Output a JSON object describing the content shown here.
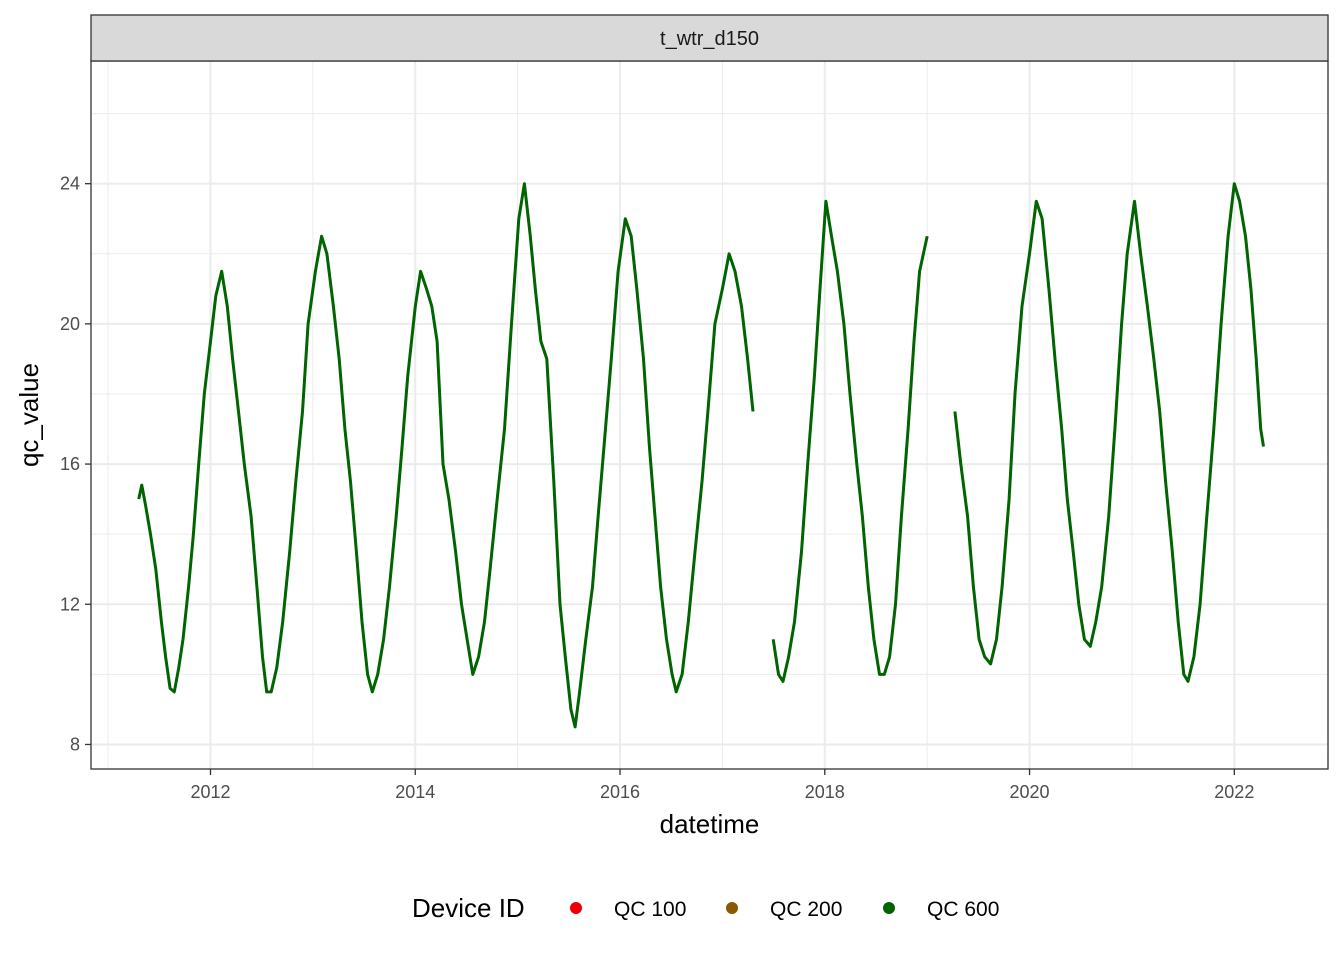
{
  "chart_data": {
    "type": "line",
    "facet_label": "t_wtr_d150",
    "xlabel": "datetime",
    "ylabel": "qc_value",
    "x_ticks": [
      "2012",
      "2014",
      "2016",
      "2018",
      "2020",
      "2022"
    ],
    "y_ticks": [
      8,
      12,
      16,
      20,
      24
    ],
    "xlim": [
      "2010-11-01",
      "2022-12-01"
    ],
    "ylim": [
      7.3,
      27.5
    ],
    "grid": true,
    "legend": {
      "title": "Device ID",
      "position": "bottom",
      "entries": [
        {
          "label": "QC 100",
          "color": "#ee0000"
        },
        {
          "label": "QC 200",
          "color": "#8b5a00"
        },
        {
          "label": "QC 600",
          "color": "#006400"
        }
      ]
    },
    "series": [
      {
        "name": "QC 600",
        "color": "#006400",
        "points": [
          [
            "2011-04-20",
            15.0
          ],
          [
            "2011-05-01",
            15.4
          ],
          [
            "2011-05-15",
            14.8
          ],
          [
            "2011-06-01",
            14.0
          ],
          [
            "2011-06-20",
            13.0
          ],
          [
            "2011-07-10",
            11.5
          ],
          [
            "2011-07-25",
            10.5
          ],
          [
            "2011-08-10",
            9.6
          ],
          [
            "2011-08-25",
            9.5
          ],
          [
            "2011-09-10",
            10.2
          ],
          [
            "2011-09-25",
            11.0
          ],
          [
            "2011-10-15",
            12.5
          ],
          [
            "2011-11-01",
            14.0
          ],
          [
            "2011-11-20",
            16.0
          ],
          [
            "2011-12-10",
            18.0
          ],
          [
            "2012-01-01",
            19.5
          ],
          [
            "2012-01-20",
            20.8
          ],
          [
            "2012-02-10",
            21.5
          ],
          [
            "2012-03-01",
            20.5
          ],
          [
            "2012-03-20",
            19.0
          ],
          [
            "2012-04-10",
            17.5
          ],
          [
            "2012-05-01",
            16.0
          ],
          [
            "2012-05-25",
            14.5
          ],
          [
            "2012-06-15",
            12.5
          ],
          [
            "2012-07-05",
            10.5
          ],
          [
            "2012-07-20",
            9.5
          ],
          [
            "2012-08-05",
            9.5
          ],
          [
            "2012-08-25",
            10.2
          ],
          [
            "2012-09-15",
            11.5
          ],
          [
            "2012-10-10",
            13.5
          ],
          [
            "2012-11-01",
            15.5
          ],
          [
            "2012-11-25",
            17.5
          ],
          [
            "2012-12-15",
            20.0
          ],
          [
            "2013-01-10",
            21.5
          ],
          [
            "2013-02-01",
            22.5
          ],
          [
            "2013-02-20",
            22.0
          ],
          [
            "2013-03-15",
            20.5
          ],
          [
            "2013-04-05",
            19.0
          ],
          [
            "2013-04-25",
            17.0
          ],
          [
            "2013-05-15",
            15.5
          ],
          [
            "2013-06-05",
            13.5
          ],
          [
            "2013-06-25",
            11.5
          ],
          [
            "2013-07-15",
            10.0
          ],
          [
            "2013-08-01",
            9.5
          ],
          [
            "2013-08-20",
            10.0
          ],
          [
            "2013-09-10",
            11.0
          ],
          [
            "2013-10-01",
            12.5
          ],
          [
            "2013-10-25",
            14.5
          ],
          [
            "2013-11-15",
            16.5
          ],
          [
            "2013-12-05",
            18.5
          ],
          [
            "2014-01-01",
            20.5
          ],
          [
            "2014-01-20",
            21.5
          ],
          [
            "2014-02-10",
            21.0
          ],
          [
            "2014-03-01",
            20.5
          ],
          [
            "2014-03-20",
            19.5
          ],
          [
            "2014-04-10",
            16.0
          ],
          [
            "2014-05-01",
            15.0
          ],
          [
            "2014-05-25",
            13.5
          ],
          [
            "2014-06-15",
            12.0
          ],
          [
            "2014-07-05",
            11.0
          ],
          [
            "2014-07-25",
            10.0
          ],
          [
            "2014-08-15",
            10.5
          ],
          [
            "2014-09-05",
            11.5
          ],
          [
            "2014-09-25",
            13.0
          ],
          [
            "2014-10-20",
            15.0
          ],
          [
            "2014-11-15",
            17.0
          ],
          [
            "2014-12-10",
            20.0
          ],
          [
            "2015-01-05",
            23.0
          ],
          [
            "2015-01-25",
            24.0
          ],
          [
            "2015-02-15",
            22.5
          ],
          [
            "2015-03-05",
            21.0
          ],
          [
            "2015-03-25",
            19.5
          ],
          [
            "2015-04-15",
            19.0
          ],
          [
            "2015-05-10",
            15.5
          ],
          [
            "2015-06-01",
            12.0
          ],
          [
            "2015-06-20",
            10.5
          ],
          [
            "2015-07-10",
            9.0
          ],
          [
            "2015-07-25",
            8.5
          ],
          [
            "2015-08-10",
            9.5
          ],
          [
            "2015-09-01",
            11.0
          ],
          [
            "2015-09-25",
            12.5
          ],
          [
            "2015-10-15",
            14.5
          ],
          [
            "2015-11-05",
            16.5
          ],
          [
            "2015-12-01",
            19.0
          ],
          [
            "2015-12-25",
            21.5
          ],
          [
            "2016-01-20",
            23.0
          ],
          [
            "2016-02-10",
            22.5
          ],
          [
            "2016-03-01",
            21.0
          ],
          [
            "2016-03-25",
            19.0
          ],
          [
            "2016-04-15",
            16.5
          ],
          [
            "2016-05-05",
            14.5
          ],
          [
            "2016-05-25",
            12.5
          ],
          [
            "2016-06-15",
            11.0
          ],
          [
            "2016-07-05",
            10.0
          ],
          [
            "2016-07-20",
            9.5
          ],
          [
            "2016-08-10",
            10.0
          ],
          [
            "2016-09-01",
            11.5
          ],
          [
            "2016-09-25",
            13.5
          ],
          [
            "2016-10-20",
            15.5
          ],
          [
            "2016-11-10",
            17.5
          ],
          [
            "2016-12-05",
            20.0
          ],
          [
            "2017-01-01",
            21.0
          ],
          [
            "2017-01-25",
            22.0
          ],
          [
            "2017-02-15",
            21.5
          ],
          [
            "2017-03-10",
            20.5
          ],
          [
            "2017-04-01",
            19.0
          ],
          [
            "2017-04-20",
            17.5
          ],
          [
            "2017-07-01",
            11.0
          ],
          [
            "2017-07-20",
            10.0
          ],
          [
            "2017-08-05",
            9.8
          ],
          [
            "2017-08-25",
            10.5
          ],
          [
            "2017-09-15",
            11.5
          ],
          [
            "2017-10-10",
            13.5
          ],
          [
            "2017-11-01",
            16.0
          ],
          [
            "2017-11-25",
            18.5
          ],
          [
            "2017-12-15",
            21.0
          ],
          [
            "2018-01-05",
            23.5
          ],
          [
            "2018-01-25",
            22.5
          ],
          [
            "2018-02-15",
            21.5
          ],
          [
            "2018-03-10",
            20.0
          ],
          [
            "2018-04-01",
            18.0
          ],
          [
            "2018-04-25",
            16.0
          ],
          [
            "2018-05-15",
            14.5
          ],
          [
            "2018-06-05",
            12.5
          ],
          [
            "2018-06-25",
            11.0
          ],
          [
            "2018-07-15",
            10.0
          ],
          [
            "2018-08-01",
            10.0
          ],
          [
            "2018-08-20",
            10.5
          ],
          [
            "2018-09-10",
            12.0
          ],
          [
            "2018-10-01",
            14.5
          ],
          [
            "2018-10-25",
            17.0
          ],
          [
            "2018-11-15",
            19.5
          ],
          [
            "2018-12-05",
            21.5
          ],
          [
            "2019-01-01",
            22.5
          ],
          [
            "2019-04-10",
            17.5
          ],
          [
            "2019-05-01",
            16.0
          ],
          [
            "2019-05-25",
            14.5
          ],
          [
            "2019-06-15",
            12.5
          ],
          [
            "2019-07-05",
            11.0
          ],
          [
            "2019-07-25",
            10.5
          ],
          [
            "2019-08-15",
            10.3
          ],
          [
            "2019-09-05",
            11.0
          ],
          [
            "2019-09-25",
            12.5
          ],
          [
            "2019-10-20",
            15.0
          ],
          [
            "2019-11-10",
            18.0
          ],
          [
            "2019-12-05",
            20.5
          ],
          [
            "2020-01-01",
            22.0
          ],
          [
            "2020-01-25",
            23.5
          ],
          [
            "2020-02-15",
            23.0
          ],
          [
            "2020-03-10",
            21.0
          ],
          [
            "2020-04-01",
            19.0
          ],
          [
            "2020-04-25",
            17.0
          ],
          [
            "2020-05-15",
            15.0
          ],
          [
            "2020-06-05",
            13.5
          ],
          [
            "2020-06-25",
            12.0
          ],
          [
            "2020-07-15",
            11.0
          ],
          [
            "2020-08-05",
            10.8
          ],
          [
            "2020-08-25",
            11.5
          ],
          [
            "2020-09-15",
            12.5
          ],
          [
            "2020-10-10",
            14.5
          ],
          [
            "2020-11-01",
            17.0
          ],
          [
            "2020-11-25",
            20.0
          ],
          [
            "2020-12-15",
            22.0
          ],
          [
            "2021-01-10",
            23.5
          ],
          [
            "2021-02-01",
            22.0
          ],
          [
            "2021-02-25",
            20.5
          ],
          [
            "2021-03-20",
            19.0
          ],
          [
            "2021-04-10",
            17.5
          ],
          [
            "2021-05-01",
            15.5
          ],
          [
            "2021-05-25",
            13.5
          ],
          [
            "2021-06-15",
            11.5
          ],
          [
            "2021-07-05",
            10.0
          ],
          [
            "2021-07-20",
            9.8
          ],
          [
            "2021-08-10",
            10.5
          ],
          [
            "2021-09-01",
            12.0
          ],
          [
            "2021-09-25",
            14.5
          ],
          [
            "2021-10-20",
            17.0
          ],
          [
            "2021-11-15",
            20.0
          ],
          [
            "2021-12-10",
            22.5
          ],
          [
            "2022-01-01",
            24.0
          ],
          [
            "2022-01-20",
            23.5
          ],
          [
            "2022-02-10",
            22.5
          ],
          [
            "2022-03-01",
            21.0
          ],
          [
            "2022-03-20",
            19.0
          ],
          [
            "2022-04-05",
            17.0
          ],
          [
            "2022-04-15",
            16.5
          ]
        ]
      }
    ]
  }
}
